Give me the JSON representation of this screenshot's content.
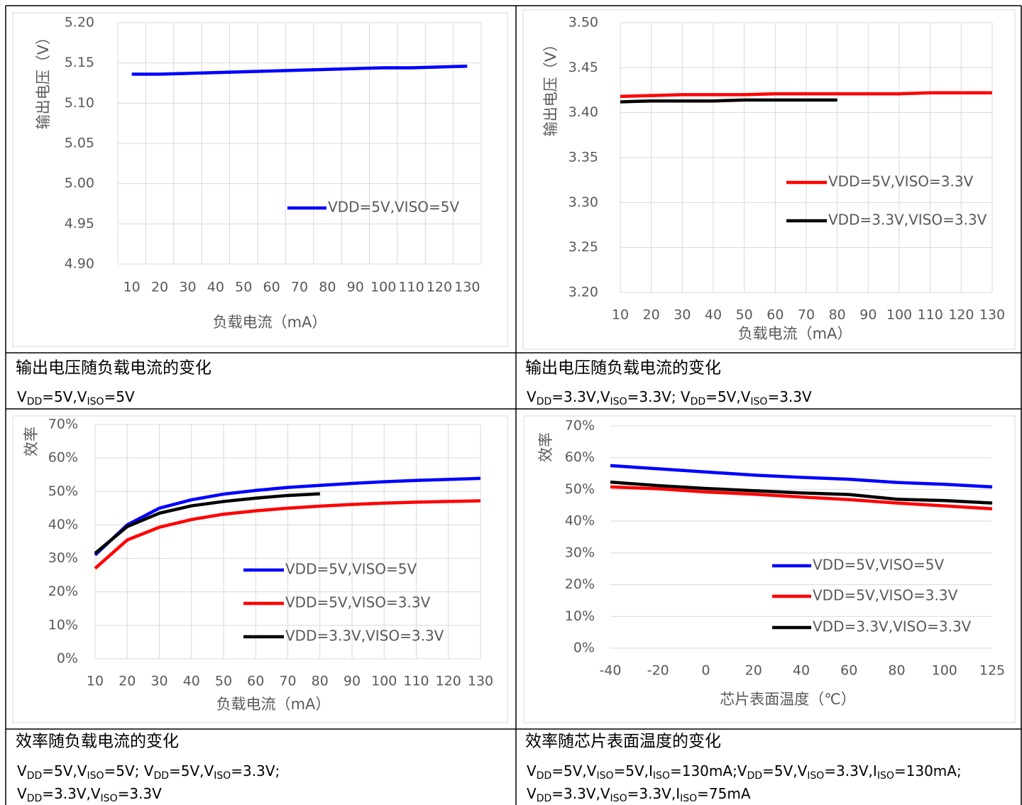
{
  "chart_data": [
    {
      "type": "line",
      "y_label": "输出电压（V）",
      "x_label": "负载电流（mA）",
      "categories": [
        "10",
        "20",
        "30",
        "40",
        "50",
        "60",
        "70",
        "80",
        "90",
        "100",
        "110",
        "120",
        "130"
      ],
      "series": [
        {
          "name": "VDD=5V,VISO=5V",
          "color": "#0000ff",
          "values": [
            5.136,
            5.136,
            5.137,
            5.138,
            5.139,
            5.14,
            5.141,
            5.142,
            5.143,
            5.144,
            5.144,
            5.145,
            5.146
          ]
        }
      ],
      "ylim": [
        4.9,
        5.2
      ],
      "yticks": [
        {
          "value": 4.9,
          "label": "4.90"
        },
        4.95,
        {
          "value": 5,
          "label": "5.00"
        },
        5.05,
        {
          "value": 5.1,
          "label": "5.10"
        },
        5.15,
        {
          "value": 5.2,
          "label": "5.20"
        }
      ],
      "grid": true,
      "xgrid": true,
      "caption": {
        "title": "输出电压随负载电流的变化",
        "lines": [
          [
            "V",
            "DD",
            "=5V,V",
            "ISO",
            "=5V"
          ]
        ]
      }
    },
    {
      "type": "line",
      "y_label": "输出电压（V）",
      "x_label": "负载电流（mA）",
      "categories": [
        "10",
        "20",
        "30",
        "40",
        "50",
        "60",
        "70",
        "80",
        "90",
        "100",
        "110",
        "120",
        "130"
      ],
      "series": [
        {
          "name": "VDD=5V,VISO=3.3V",
          "color": "#ff0000",
          "values": [
            3.418,
            3.419,
            3.42,
            3.42,
            3.42,
            3.421,
            3.421,
            3.421,
            3.421,
            3.421,
            3.422,
            3.422,
            3.422
          ]
        },
        {
          "name": "VDD=3.3V,VISO=3.3V",
          "color": "#000000",
          "values": [
            3.412,
            3.413,
            3.413,
            3.413,
            3.414,
            3.414,
            3.414,
            3.414,
            null,
            null,
            null,
            null,
            null
          ]
        }
      ],
      "ylim": [
        3.2,
        3.5
      ],
      "yticks": [
        {
          "value": 3.2,
          "label": "3.20"
        },
        3.25,
        {
          "value": 3.3,
          "label": "3.30"
        },
        3.35,
        {
          "value": 3.4,
          "label": "3.40"
        },
        3.45,
        {
          "value": 3.5,
          "label": "3.50"
        }
      ],
      "grid": true,
      "xgrid": true,
      "caption": {
        "title": "输出电压随负载电流的变化",
        "lines": [
          [
            "V",
            "DD",
            "=3.3V,V",
            "ISO",
            "=3.3V; V",
            "DD",
            "=5V,V",
            "ISO",
            "=3.3V"
          ]
        ]
      }
    },
    {
      "type": "line",
      "y_label": "效率",
      "x_label": "负载电流（mA）",
      "categories": [
        "10",
        "20",
        "30",
        "40",
        "50",
        "60",
        "70",
        "80",
        "90",
        "100",
        "110",
        "120",
        "130"
      ],
      "series": [
        {
          "name": "VDD=5V,VISO=5V",
          "color": "#0000ff",
          "values": [
            31,
            40,
            45,
            47.5,
            49.2,
            50.3,
            51.2,
            51.8,
            52.4,
            52.9,
            53.3,
            53.6,
            53.9
          ]
        },
        {
          "name": "VDD=5V,VISO=3.3V",
          "color": "#ff0000",
          "values": [
            27,
            35.5,
            39.3,
            41.6,
            43.2,
            44.2,
            45,
            45.6,
            46.1,
            46.5,
            46.8,
            47,
            47.2
          ]
        },
        {
          "name": "VDD=3.3V,VISO=3.3V",
          "color": "#000000",
          "values": [
            31.5,
            39.5,
            43.5,
            45.7,
            47,
            48,
            48.8,
            49.3,
            null,
            null,
            null,
            null,
            null
          ]
        }
      ],
      "ylim": [
        0,
        70
      ],
      "yticks": [
        {
          "value": 0,
          "label": "0%"
        },
        {
          "value": 10,
          "label": "10%"
        },
        {
          "value": 20,
          "label": "20%"
        },
        {
          "value": 30,
          "label": "30%"
        },
        {
          "value": 40,
          "label": "40%"
        },
        {
          "value": 50,
          "label": "50%"
        },
        {
          "value": 60,
          "label": "60%"
        },
        {
          "value": 70,
          "label": "70%"
        }
      ],
      "grid": true,
      "xgrid": true,
      "caption": {
        "title": "效率随负载电流的变化",
        "lines": [
          [
            "V",
            "DD",
            "=5V,V",
            "ISO",
            "=5V; V",
            "DD",
            "=5V,V",
            "ISO",
            "=3.3V;"
          ],
          [
            "V",
            "DD",
            "=3.3V,V",
            "ISO",
            "=3.3V"
          ]
        ]
      }
    },
    {
      "type": "line",
      "y_label": "效率",
      "x_label": "芯片表面温度（℃）",
      "categories": [
        "-40",
        "-20",
        "0",
        "20",
        "40",
        "60",
        "80",
        "100",
        "125"
      ],
      "series": [
        {
          "name": "VDD=5V,VISO=5V",
          "color": "#0000ff",
          "values": [
            57.5,
            56.5,
            55.5,
            54.5,
            53.8,
            53.2,
            52.2,
            51.6,
            50.8
          ]
        },
        {
          "name": "VDD=5V,VISO=3.3V",
          "color": "#ff0000",
          "values": [
            50.8,
            50.2,
            49.2,
            48.5,
            47.6,
            46.8,
            45.7,
            44.8,
            43.9
          ]
        },
        {
          "name": "VDD=3.3V,VISO=3.3V",
          "color": "#000000",
          "values": [
            52.3,
            51.2,
            50.3,
            49.6,
            48.9,
            48.4,
            46.9,
            46.5,
            45.7
          ]
        }
      ],
      "ylim": [
        0,
        70
      ],
      "yticks": [
        {
          "value": 0,
          "label": "0%"
        },
        {
          "value": 10,
          "label": "10%"
        },
        {
          "value": 20,
          "label": "20%"
        },
        {
          "value": 30,
          "label": "30%"
        },
        {
          "value": 40,
          "label": "40%"
        },
        {
          "value": 50,
          "label": "50%"
        },
        {
          "value": 60,
          "label": "60%"
        },
        {
          "value": 70,
          "label": "70%"
        }
      ],
      "grid": true,
      "xgrid": false,
      "caption": {
        "title": "效率随芯片表面温度的变化",
        "lines": [
          [
            "V",
            "DD",
            "=5V,V",
            "ISO",
            "=5V,I",
            "ISO",
            "=130mA;V",
            "DD",
            "=5V,V",
            "ISO",
            "=3.3V,I",
            "ISO",
            "=130mA;"
          ],
          [
            "V",
            "DD",
            "=3.3V,V",
            "ISO",
            "=3.3V,I",
            "ISO",
            "=75mA"
          ]
        ]
      }
    }
  ]
}
